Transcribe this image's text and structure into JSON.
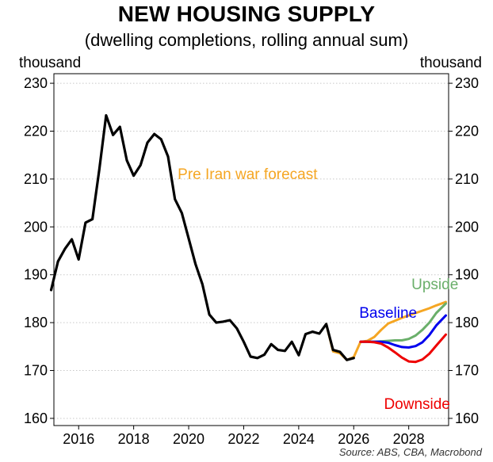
{
  "chart_data": {
    "type": "line",
    "title": "NEW HOUSING SUPPLY",
    "subtitle": "(dwelling completions, rolling annual sum)",
    "ylabel_left": "thousand",
    "ylabel_right": "thousand",
    "source": "Source: ABS, CBA, Macrobond",
    "xlim": [
      2015.1,
      2029.45
    ],
    "ylim": [
      158.5,
      232
    ],
    "xticks": [
      2016,
      2018,
      2020,
      2022,
      2024,
      2026,
      2028
    ],
    "yticks": [
      160,
      170,
      180,
      190,
      200,
      210,
      220,
      230
    ],
    "grid": true,
    "annotations": [
      {
        "text": "Pre Iran war forecast",
        "color": "#f5a623",
        "x": 2019.6,
        "y": 210
      },
      {
        "text": "Upside",
        "color": "#6aaf6a",
        "x": 2028.1,
        "y": 187
      },
      {
        "text": "Baseline",
        "color": "#0000ee",
        "x": 2026.2,
        "y": 181
      },
      {
        "text": "Downside",
        "color": "#ee0000",
        "x": 2027.1,
        "y": 162
      }
    ],
    "series": [
      {
        "color": "#000000",
        "x": [
          2015.0,
          2015.25,
          2015.5,
          2015.75,
          2016.0,
          2016.25,
          2016.5,
          2016.75,
          2017.0,
          2017.25,
          2017.5,
          2017.75,
          2018.0,
          2018.25,
          2018.5,
          2018.75,
          2019.0,
          2019.25,
          2019.5,
          2019.75,
          2020.0,
          2020.25,
          2020.5,
          2020.75,
          2021.0,
          2021.25,
          2021.5,
          2021.75,
          2022.0,
          2022.25,
          2022.5,
          2022.75,
          2023.0,
          2023.25,
          2023.5,
          2023.75,
          2024.0,
          2024.25,
          2024.5,
          2024.75,
          2025.0,
          2025.25,
          2025.5,
          2025.75,
          2026.0
        ],
        "values": [
          186.8,
          192.8,
          195.4,
          197.4,
          193.2,
          200.9,
          201.6,
          212.0,
          223.3,
          219.2,
          220.9,
          213.9,
          210.7,
          212.9,
          217.6,
          219.4,
          218.3,
          214.7,
          205.8,
          202.9,
          197.6,
          192.2,
          188.0,
          181.7,
          180.0,
          180.2,
          180.5,
          178.8,
          176.0,
          172.9,
          172.6,
          173.3,
          175.5,
          174.3,
          174.1,
          176.0,
          173.2,
          177.6,
          178.1,
          177.7,
          179.7,
          174.3,
          173.9,
          172.2,
          172.6
        ]
      },
      {
        "color": "#f5a623",
        "x": [
          2025.0,
          2025.25,
          2025.5,
          2025.75,
          2026.0,
          2026.25,
          2026.5,
          2026.75,
          2027.0,
          2027.25,
          2027.5,
          2027.75,
          2028.0,
          2028.25,
          2028.5,
          2028.75,
          2029.0,
          2029.35
        ],
        "values": [
          179.7,
          174.0,
          173.6,
          172.2,
          172.8,
          176.0,
          176.2,
          177.0,
          178.5,
          179.8,
          180.4,
          181.0,
          181.5,
          182.0,
          182.5,
          183.0,
          183.6,
          184.3
        ]
      },
      {
        "color": "#6aaf6a",
        "x": [
          2026.25,
          2026.5,
          2026.75,
          2027.0,
          2027.25,
          2027.5,
          2027.75,
          2028.0,
          2028.25,
          2028.5,
          2028.75,
          2029.0,
          2029.35
        ],
        "values": [
          176.0,
          176.0,
          176.0,
          176.1,
          176.2,
          176.3,
          176.3,
          176.6,
          177.3,
          178.5,
          180.0,
          182.0,
          184.0
        ]
      },
      {
        "color": "#0000ee",
        "x": [
          2026.25,
          2026.5,
          2026.75,
          2027.0,
          2027.25,
          2027.5,
          2027.75,
          2028.0,
          2028.25,
          2028.5,
          2028.75,
          2029.0,
          2029.35
        ],
        "values": [
          176.0,
          176.0,
          176.0,
          176.0,
          175.8,
          175.3,
          174.9,
          174.8,
          175.1,
          175.9,
          177.4,
          179.4,
          181.5
        ]
      },
      {
        "color": "#ee0000",
        "x": [
          2026.25,
          2026.5,
          2026.75,
          2027.0,
          2027.25,
          2027.5,
          2027.75,
          2028.0,
          2028.25,
          2028.5,
          2028.75,
          2029.0,
          2029.35
        ],
        "values": [
          176.0,
          176.0,
          175.9,
          175.6,
          174.8,
          173.8,
          172.7,
          171.9,
          171.8,
          172.3,
          173.5,
          175.2,
          177.5
        ]
      }
    ]
  }
}
